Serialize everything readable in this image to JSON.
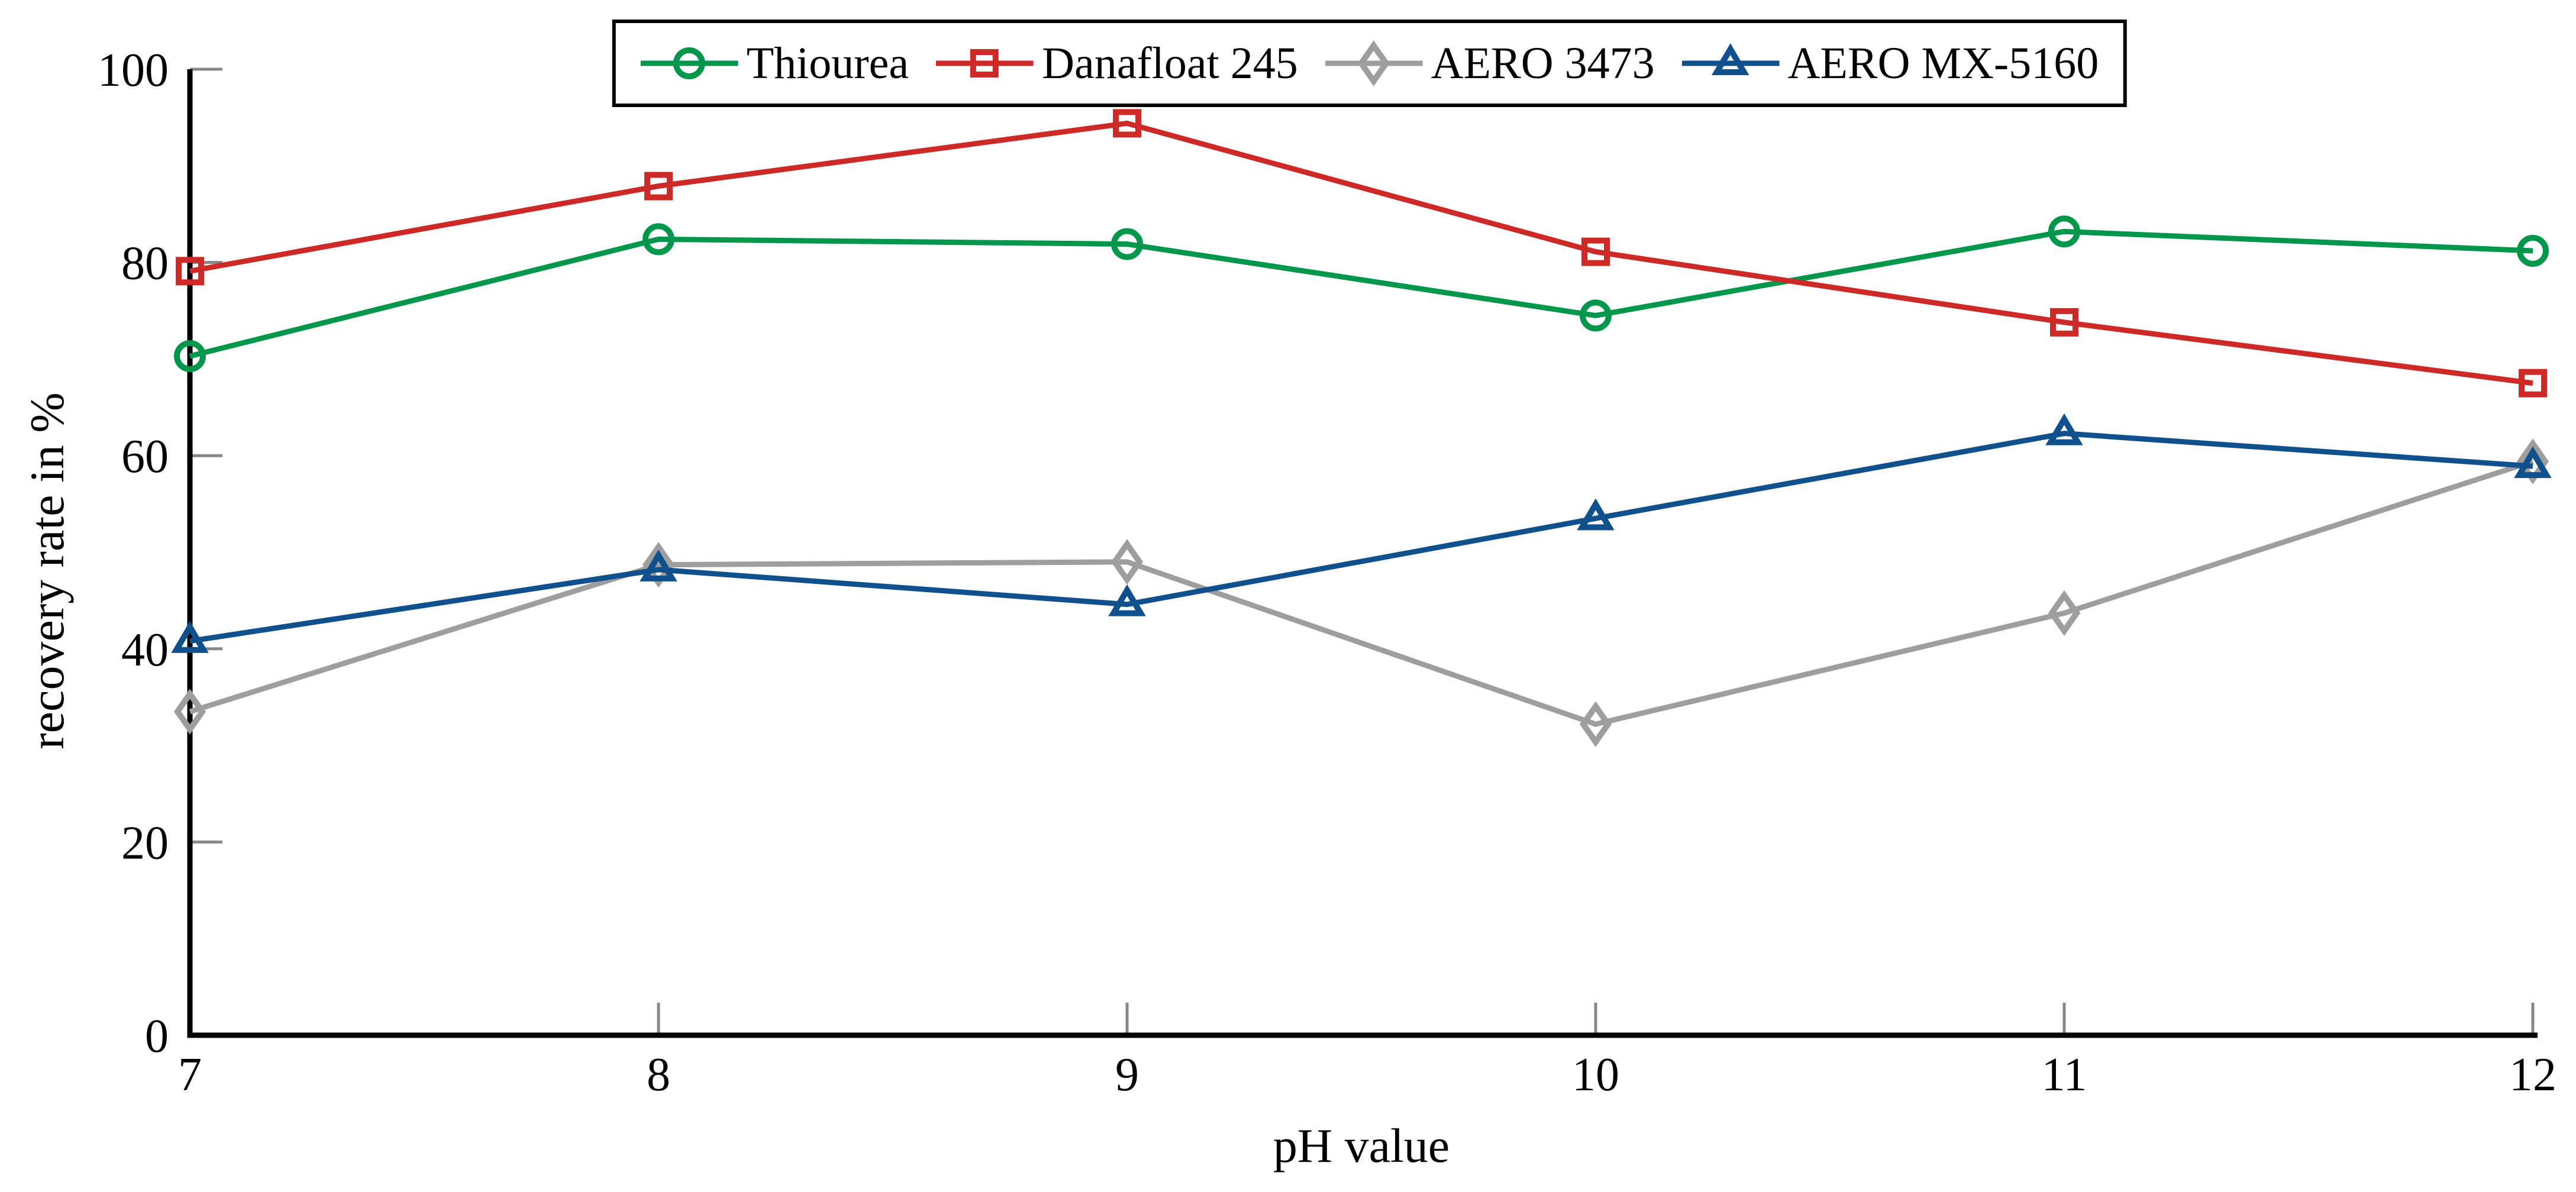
{
  "page": {
    "background": "#ffffff"
  },
  "chart_data": {
    "type": "line",
    "title": "",
    "xlabel": "pH value",
    "ylabel": "recovery rate in %",
    "x": [
      7,
      8,
      9,
      10,
      11,
      12
    ],
    "x_tick_labels": [
      "7",
      "8",
      "9",
      "10",
      "11",
      "12"
    ],
    "y_ticks": [
      0,
      20,
      40,
      60,
      80,
      100
    ],
    "xlim": [
      7,
      12
    ],
    "ylim": [
      0,
      100
    ],
    "grid": false,
    "legend_position": "top-center",
    "axis_color": "#000000",
    "tick_color": "#888888",
    "series": [
      {
        "name": "Thiourea",
        "color": "#00964b",
        "marker": "circle",
        "values": [
          70.3,
          82.4,
          81.9,
          74.5,
          83.2,
          81.2
        ]
      },
      {
        "name": "Danafloat 245",
        "color": "#cc2927",
        "marker": "square",
        "values": [
          79.1,
          87.9,
          94.4,
          81.1,
          73.8,
          67.5
        ]
      },
      {
        "name": "AERO 3473",
        "color": "#9e9e9e",
        "marker": "diamond",
        "values": [
          33.5,
          48.7,
          49.0,
          32.2,
          43.7,
          59.4
        ]
      },
      {
        "name": "AERO MX-5160",
        "color": "#10508c",
        "marker": "triangle",
        "values": [
          40.8,
          48.2,
          44.6,
          53.5,
          62.3,
          58.9
        ]
      }
    ]
  }
}
